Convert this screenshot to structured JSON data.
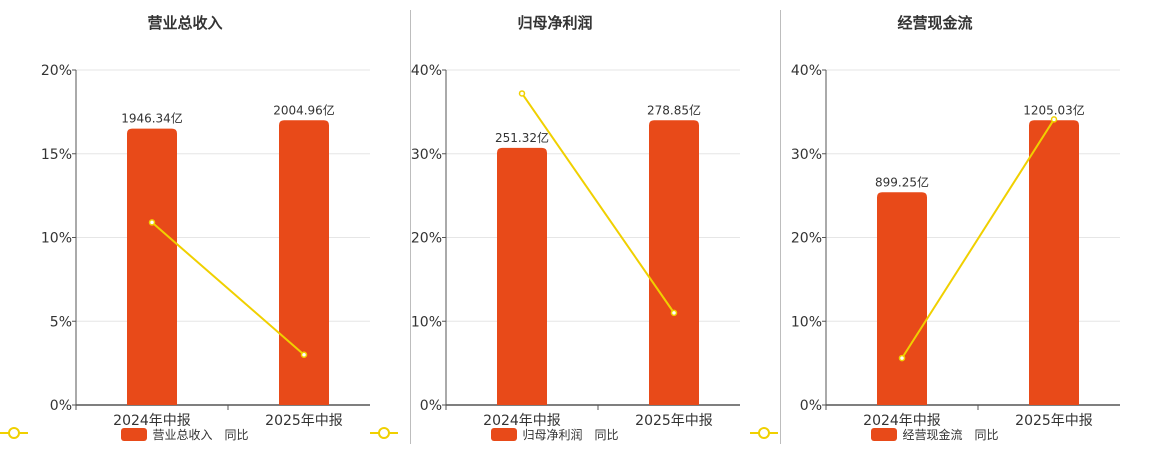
{
  "colors": {
    "bar": "#e84a19",
    "line": "#f0d000",
    "axis": "#555555",
    "grid": "#e6e6e6"
  },
  "legend": {
    "yoy_label": "同比"
  },
  "chart_data": [
    {
      "type": "bar",
      "title": "营业总收入",
      "categories": [
        "2024年中报",
        "2025年中报"
      ],
      "values": [
        1946.34,
        2004.96
      ],
      "value_labels": [
        "1946.34亿",
        "2004.96亿"
      ],
      "series": [
        {
          "name": "营业总收入",
          "type": "bar",
          "values": [
            16.5,
            17.0
          ]
        },
        {
          "name": "同比",
          "type": "line",
          "values": [
            10.9,
            3.0
          ]
        }
      ],
      "ylim": [
        0,
        20
      ],
      "yticks": [
        0,
        5,
        10,
        15,
        20
      ],
      "ytick_labels": [
        "0%",
        "5%",
        "10%",
        "15%",
        "20%"
      ],
      "grid": true,
      "legend_position": "bottom"
    },
    {
      "type": "bar",
      "title": "归母净利润",
      "categories": [
        "2024年中报",
        "2025年中报"
      ],
      "values": [
        251.32,
        278.85
      ],
      "value_labels": [
        "251.32亿",
        "278.85亿"
      ],
      "series": [
        {
          "name": "归母净利润",
          "type": "bar",
          "values": [
            30.7,
            34.0
          ]
        },
        {
          "name": "同比",
          "type": "line",
          "values": [
            37.2,
            11.0
          ]
        }
      ],
      "ylim": [
        0,
        40
      ],
      "yticks": [
        0,
        10,
        20,
        30,
        40
      ],
      "ytick_labels": [
        "0%",
        "10%",
        "20%",
        "30%",
        "40%"
      ],
      "grid": true,
      "legend_position": "bottom"
    },
    {
      "type": "bar",
      "title": "经营现金流",
      "categories": [
        "2024年中报",
        "2025年中报"
      ],
      "values": [
        899.25,
        1205.03
      ],
      "value_labels": [
        "899.25亿",
        "1205.03亿"
      ],
      "series": [
        {
          "name": "经营现金流",
          "type": "bar",
          "values": [
            25.4,
            34.0
          ]
        },
        {
          "name": "同比",
          "type": "line",
          "values": [
            5.6,
            34.1
          ]
        }
      ],
      "ylim": [
        0,
        40
      ],
      "yticks": [
        0,
        10,
        20,
        30,
        40
      ],
      "ytick_labels": [
        "0%",
        "10%",
        "20%",
        "30%",
        "40%"
      ],
      "grid": true,
      "legend_position": "bottom"
    }
  ]
}
